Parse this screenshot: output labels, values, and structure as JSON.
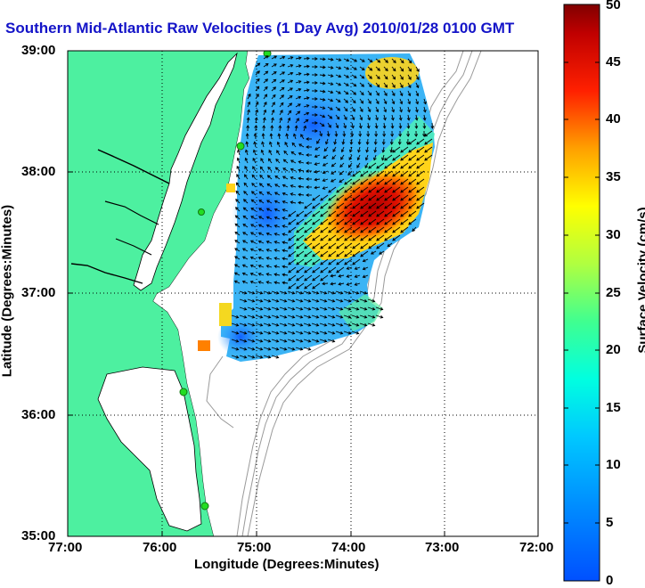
{
  "title": "Southern Mid-Atlantic Raw Velocities (1 Day Avg) 2010/01/28 0100 GMT",
  "x_axis": {
    "label": "Longitude (Degrees:Minutes)",
    "ticks": [
      "77:00",
      "76:00",
      "75:00",
      "74:00",
      "73:00",
      "72:00"
    ]
  },
  "y_axis": {
    "label": "Latitude (Degrees:Minutes)",
    "ticks": [
      "39:00",
      "38:00",
      "37:00",
      "36:00",
      "35:00"
    ]
  },
  "colorbar": {
    "label": "Surface Velocity (cm/s)",
    "min": 0,
    "max": 50,
    "ticks": [
      "0",
      "5",
      "10",
      "15",
      "20",
      "25",
      "30",
      "35",
      "40",
      "45",
      "50"
    ],
    "colormap": "jet"
  },
  "colors": {
    "title": "#1414c8",
    "land": "#4df0a0",
    "coastline": "#000000",
    "bathymetry": "#9a9a9a",
    "radar_site": "#22dd22",
    "vector": "#000000",
    "grid": "#000000"
  },
  "legend": []
}
